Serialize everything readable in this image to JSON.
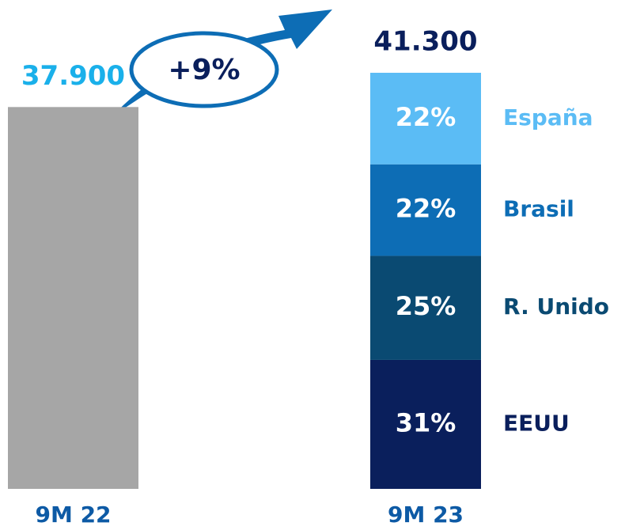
{
  "chart_data": {
    "type": "bar",
    "categories": [
      "9M 22",
      "9M 23"
    ],
    "values": [
      37900,
      41300
    ],
    "value_labels": [
      "37.900",
      "41.300"
    ],
    "value_label_colors": [
      "#1ab0ea",
      "#0a1f5c"
    ],
    "color": "#a6a6a6",
    "category_color": "#0d5aa5",
    "annotation": "+9%",
    "series": [
      {
        "name": "EEUU",
        "color": "#0a1f5c",
        "value": 31,
        "value_label": "31%"
      },
      {
        "name": "R. Unido",
        "color": "#0a4a72",
        "value": 25,
        "value_label": "25%"
      },
      {
        "name": "Brasil",
        "color": "#0d6db5",
        "value": 22,
        "value_label": "22%"
      },
      {
        "name": "España",
        "color": "#5bbcf5",
        "value": 22,
        "value_label": "22%"
      }
    ]
  }
}
